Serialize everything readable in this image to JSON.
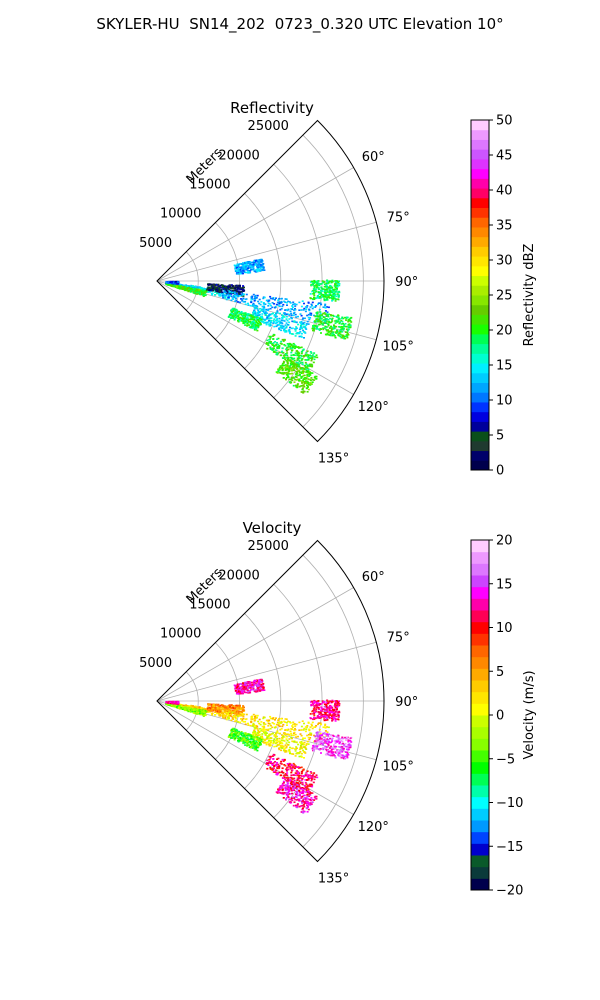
{
  "figure_title": "SKYLER-HU  SN14_202  0723_0.320 UTC Elevation 10°",
  "range_unit_label": "Meters",
  "chart_data": [
    {
      "type": "radar_ppi_sector",
      "title": "Reflectivity",
      "theta_range_deg": [
        45,
        135
      ],
      "range_ticks_m": [
        5000,
        10000,
        15000,
        20000,
        25000
      ],
      "range_tick_labels": [
        "5000",
        "10000",
        "15000",
        "20000",
        "25000"
      ],
      "r_max_m": 27500,
      "angle_ticks_deg": [
        60,
        75,
        90,
        105,
        120,
        135
      ],
      "angle_tick_labels": [
        "60°",
        "75°",
        "90°",
        "105°",
        "120°",
        "135°"
      ],
      "grid": true,
      "colorbar": {
        "label": "Reflectivity dBZ",
        "min": 0,
        "max": 50,
        "ticks": [
          0,
          5,
          10,
          15,
          20,
          25,
          30,
          35,
          40,
          45,
          50
        ],
        "tick_labels": [
          "0",
          "5",
          "10",
          "15",
          "20",
          "25",
          "30",
          "35",
          "40",
          "45",
          "50"
        ],
        "colors": [
          "#00004c",
          "#00006a",
          "#1f3a2f",
          "#0a4f1a",
          "#00009b",
          "#0000e0",
          "#0033ff",
          "#0077ff",
          "#00a6ff",
          "#00ccff",
          "#00f0ff",
          "#00ffd0",
          "#00ff99",
          "#00ff55",
          "#19ff00",
          "#44e600",
          "#66cc00",
          "#88e600",
          "#aaee00",
          "#ccff00",
          "#ffff00",
          "#ffe600",
          "#ffcc00",
          "#ffaa00",
          "#ff8800",
          "#ff6600",
          "#ff3300",
          "#ff0000",
          "#ff0066",
          "#ff00aa",
          "#ff00ff",
          "#dd33ff",
          "#cc55ff",
          "#dd77ff",
          "#ee99ff",
          "#ffccff"
        ]
      },
      "echo_cells": [
        {
          "az": 100,
          "r0": 1500,
          "r1": 9000,
          "v": 14
        },
        {
          "az": 104,
          "r0": 1000,
          "r1": 6000,
          "v": 21
        },
        {
          "az": 96,
          "r0": 6000,
          "r1": 10500,
          "v": 4
        },
        {
          "az": 101,
          "r0": 8000,
          "r1": 21000,
          "v": 12
        },
        {
          "az": 108,
          "r0": 12000,
          "r1": 19000,
          "v": 14
        },
        {
          "az": 113,
          "r0": 9500,
          "r1": 13500,
          "v": 19
        },
        {
          "az": 118,
          "r0": 15000,
          "r1": 21500,
          "v": 20
        },
        {
          "az": 124,
          "r0": 18000,
          "r1": 22500,
          "v": 22
        },
        {
          "az": 104,
          "r0": 19500,
          "r1": 24000,
          "v": 20
        },
        {
          "az": 93,
          "r0": 18500,
          "r1": 22000,
          "v": 19
        },
        {
          "az": 81,
          "r0": 9500,
          "r1": 13000,
          "v": 12
        },
        {
          "az": 93,
          "r0": 1000,
          "r1": 2500,
          "v": 9
        }
      ]
    },
    {
      "type": "radar_ppi_sector",
      "title": "Velocity",
      "theta_range_deg": [
        45,
        135
      ],
      "range_ticks_m": [
        5000,
        10000,
        15000,
        20000,
        25000
      ],
      "range_tick_labels": [
        "5000",
        "10000",
        "15000",
        "20000",
        "25000"
      ],
      "r_max_m": 27500,
      "angle_ticks_deg": [
        60,
        75,
        90,
        105,
        120,
        135
      ],
      "angle_tick_labels": [
        "60°",
        "75°",
        "90°",
        "105°",
        "120°",
        "135°"
      ],
      "grid": true,
      "colorbar": {
        "label": "Velocity (m/s)",
        "min": -20,
        "max": 20,
        "ticks": [
          -20,
          -15,
          -10,
          -5,
          0,
          5,
          10,
          15,
          20
        ],
        "tick_labels": [
          "−20",
          "−15",
          "−10",
          "−5",
          "0",
          "5",
          "10",
          "15",
          "20"
        ],
        "colors": [
          "#00004c",
          "#0a3a3a",
          "#0a5a2a",
          "#0000cc",
          "#0044ff",
          "#0099ff",
          "#00ccff",
          "#00ffff",
          "#00ffaa",
          "#00ff55",
          "#00ff00",
          "#44ff00",
          "#88ff00",
          "#aaff00",
          "#ccff00",
          "#ffff00",
          "#ffe600",
          "#ffcc00",
          "#ffaa00",
          "#ff8800",
          "#ff6600",
          "#ff3300",
          "#ff0000",
          "#ff0055",
          "#ff00aa",
          "#ff00ff",
          "#cc44ff",
          "#dd77ff",
          "#ee99ff",
          "#ffccff"
        ]
      },
      "echo_cells": [
        {
          "az": 100,
          "r0": 1500,
          "r1": 9000,
          "v": 3
        },
        {
          "az": 104,
          "r0": 1000,
          "r1": 6000,
          "v": -3
        },
        {
          "az": 96,
          "r0": 6000,
          "r1": 10500,
          "v": 6
        },
        {
          "az": 101,
          "r0": 8000,
          "r1": 21000,
          "v": 2
        },
        {
          "az": 108,
          "r0": 12000,
          "r1": 19000,
          "v": 1
        },
        {
          "az": 113,
          "r0": 9500,
          "r1": 13500,
          "v": -5
        },
        {
          "az": 118,
          "r0": 15000,
          "r1": 21500,
          "v": 11
        },
        {
          "az": 124,
          "r0": 18000,
          "r1": 22500,
          "v": 13
        },
        {
          "az": 104,
          "r0": 19500,
          "r1": 24000,
          "v": 15
        },
        {
          "az": 93,
          "r0": 18500,
          "r1": 22000,
          "v": 12
        },
        {
          "az": 81,
          "r0": 9500,
          "r1": 13000,
          "v": 13
        },
        {
          "az": 93,
          "r0": 1000,
          "r1": 2500,
          "v": 12
        }
      ]
    }
  ]
}
